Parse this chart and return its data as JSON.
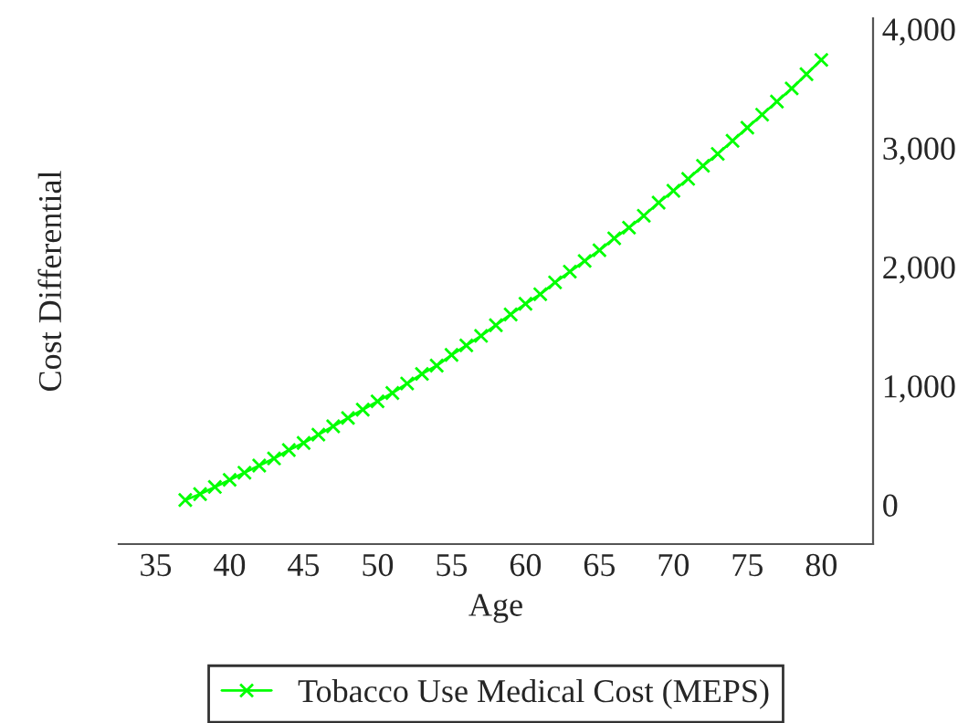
{
  "chart_data": {
    "type": "line",
    "xlabel": "Age",
    "ylabel": "Cost Differential",
    "x": [
      37,
      38,
      39,
      40,
      41,
      42,
      43,
      44,
      45,
      46,
      47,
      48,
      49,
      50,
      51,
      52,
      53,
      54,
      55,
      56,
      57,
      58,
      59,
      60,
      61,
      62,
      63,
      64,
      65,
      66,
      67,
      68,
      69,
      70,
      71,
      72,
      73,
      74,
      75,
      76,
      77,
      78,
      79,
      80
    ],
    "series": [
      {
        "name": "Tobacco Use Medical Cost (MEPS)",
        "color": "#00ff00",
        "values": [
          40,
          90,
          150,
          210,
          270,
          330,
          390,
          460,
          520,
          590,
          660,
          730,
          800,
          870,
          940,
          1020,
          1100,
          1170,
          1260,
          1340,
          1420,
          1510,
          1600,
          1690,
          1770,
          1870,
          1960,
          2050,
          2140,
          2240,
          2330,
          2430,
          2540,
          2640,
          2740,
          2850,
          2950,
          3060,
          3170,
          3280,
          3390,
          3500,
          3620,
          3740
        ]
      }
    ],
    "xlim": [
      32.5,
      83.5
    ],
    "ylim": [
      -330,
      4090
    ],
    "xticks": [
      35,
      40,
      45,
      50,
      55,
      60,
      65,
      70,
      75,
      80
    ],
    "yticks": [
      {
        "value": 0,
        "label": "0"
      },
      {
        "value": 1000,
        "label": "1,000"
      },
      {
        "value": 2000,
        "label": "2,000"
      },
      {
        "value": 3000,
        "label": "3,000"
      },
      {
        "value": 4000,
        "label": "4,000"
      }
    ],
    "marker": "cross",
    "line_style": "solid",
    "grid": false,
    "legend": "bottom"
  }
}
